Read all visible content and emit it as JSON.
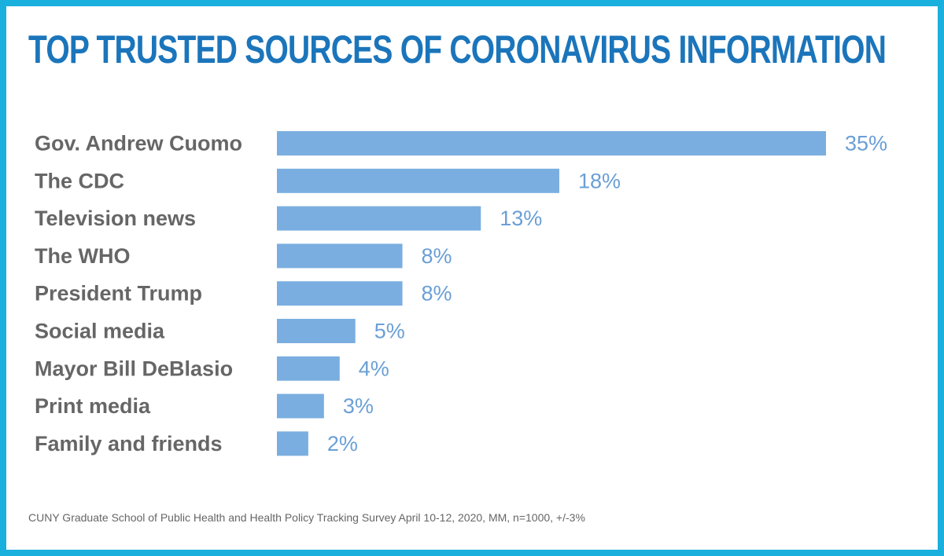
{
  "chart_data": {
    "type": "bar",
    "orientation": "horizontal",
    "title": "TOP TRUSTED SOURCES OF CORONAVIRUS INFORMATION",
    "categories": [
      "Gov. Andrew Cuomo",
      "The CDC",
      "Television news",
      "The WHO",
      "President Trump",
      "Social media",
      "Mayor Bill DeBlasio",
      "Print media",
      "Family and friends"
    ],
    "values": [
      35,
      18,
      13,
      8,
      8,
      5,
      4,
      3,
      2
    ],
    "value_labels": [
      "35%",
      "18%",
      "13%",
      "8%",
      "8%",
      "5%",
      "4%",
      "3%",
      "2%"
    ],
    "xlim": [
      0,
      35
    ],
    "grid": false,
    "legend": "none",
    "bar_color": "#7aaee0",
    "source": "CUNY Graduate School of Public Health and Health Policy Tracking Survey April 10-12, 2020, MM, n=1000, +/-3%"
  },
  "colors": {
    "border": "#1ab0dd",
    "title": "#1b75bb",
    "label": "#666666",
    "value": "#6a9fd6"
  }
}
